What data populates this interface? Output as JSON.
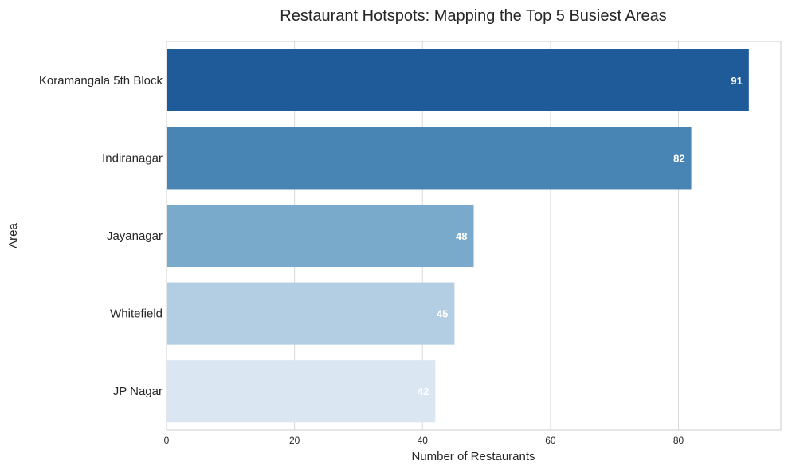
{
  "chart_data": {
    "type": "bar",
    "orientation": "horizontal",
    "title": "Restaurant Hotspots: Mapping the Top 5 Busiest Areas",
    "xlabel": "Number of Restaurants",
    "ylabel": "Area",
    "categories": [
      "Koramangala 5th Block",
      "Indiranagar",
      "Jayanagar",
      "Whitefield",
      "JP Nagar"
    ],
    "values": [
      91,
      82,
      48,
      45,
      42
    ],
    "xlim": [
      0,
      96
    ],
    "x_ticks": [
      0,
      20,
      40,
      60,
      80
    ],
    "grid": true,
    "bar_colors": [
      "#1f5b99",
      "#4884b4",
      "#79aacc",
      "#b3cee2",
      "#dae6f2"
    ],
    "data_labels": true
  }
}
